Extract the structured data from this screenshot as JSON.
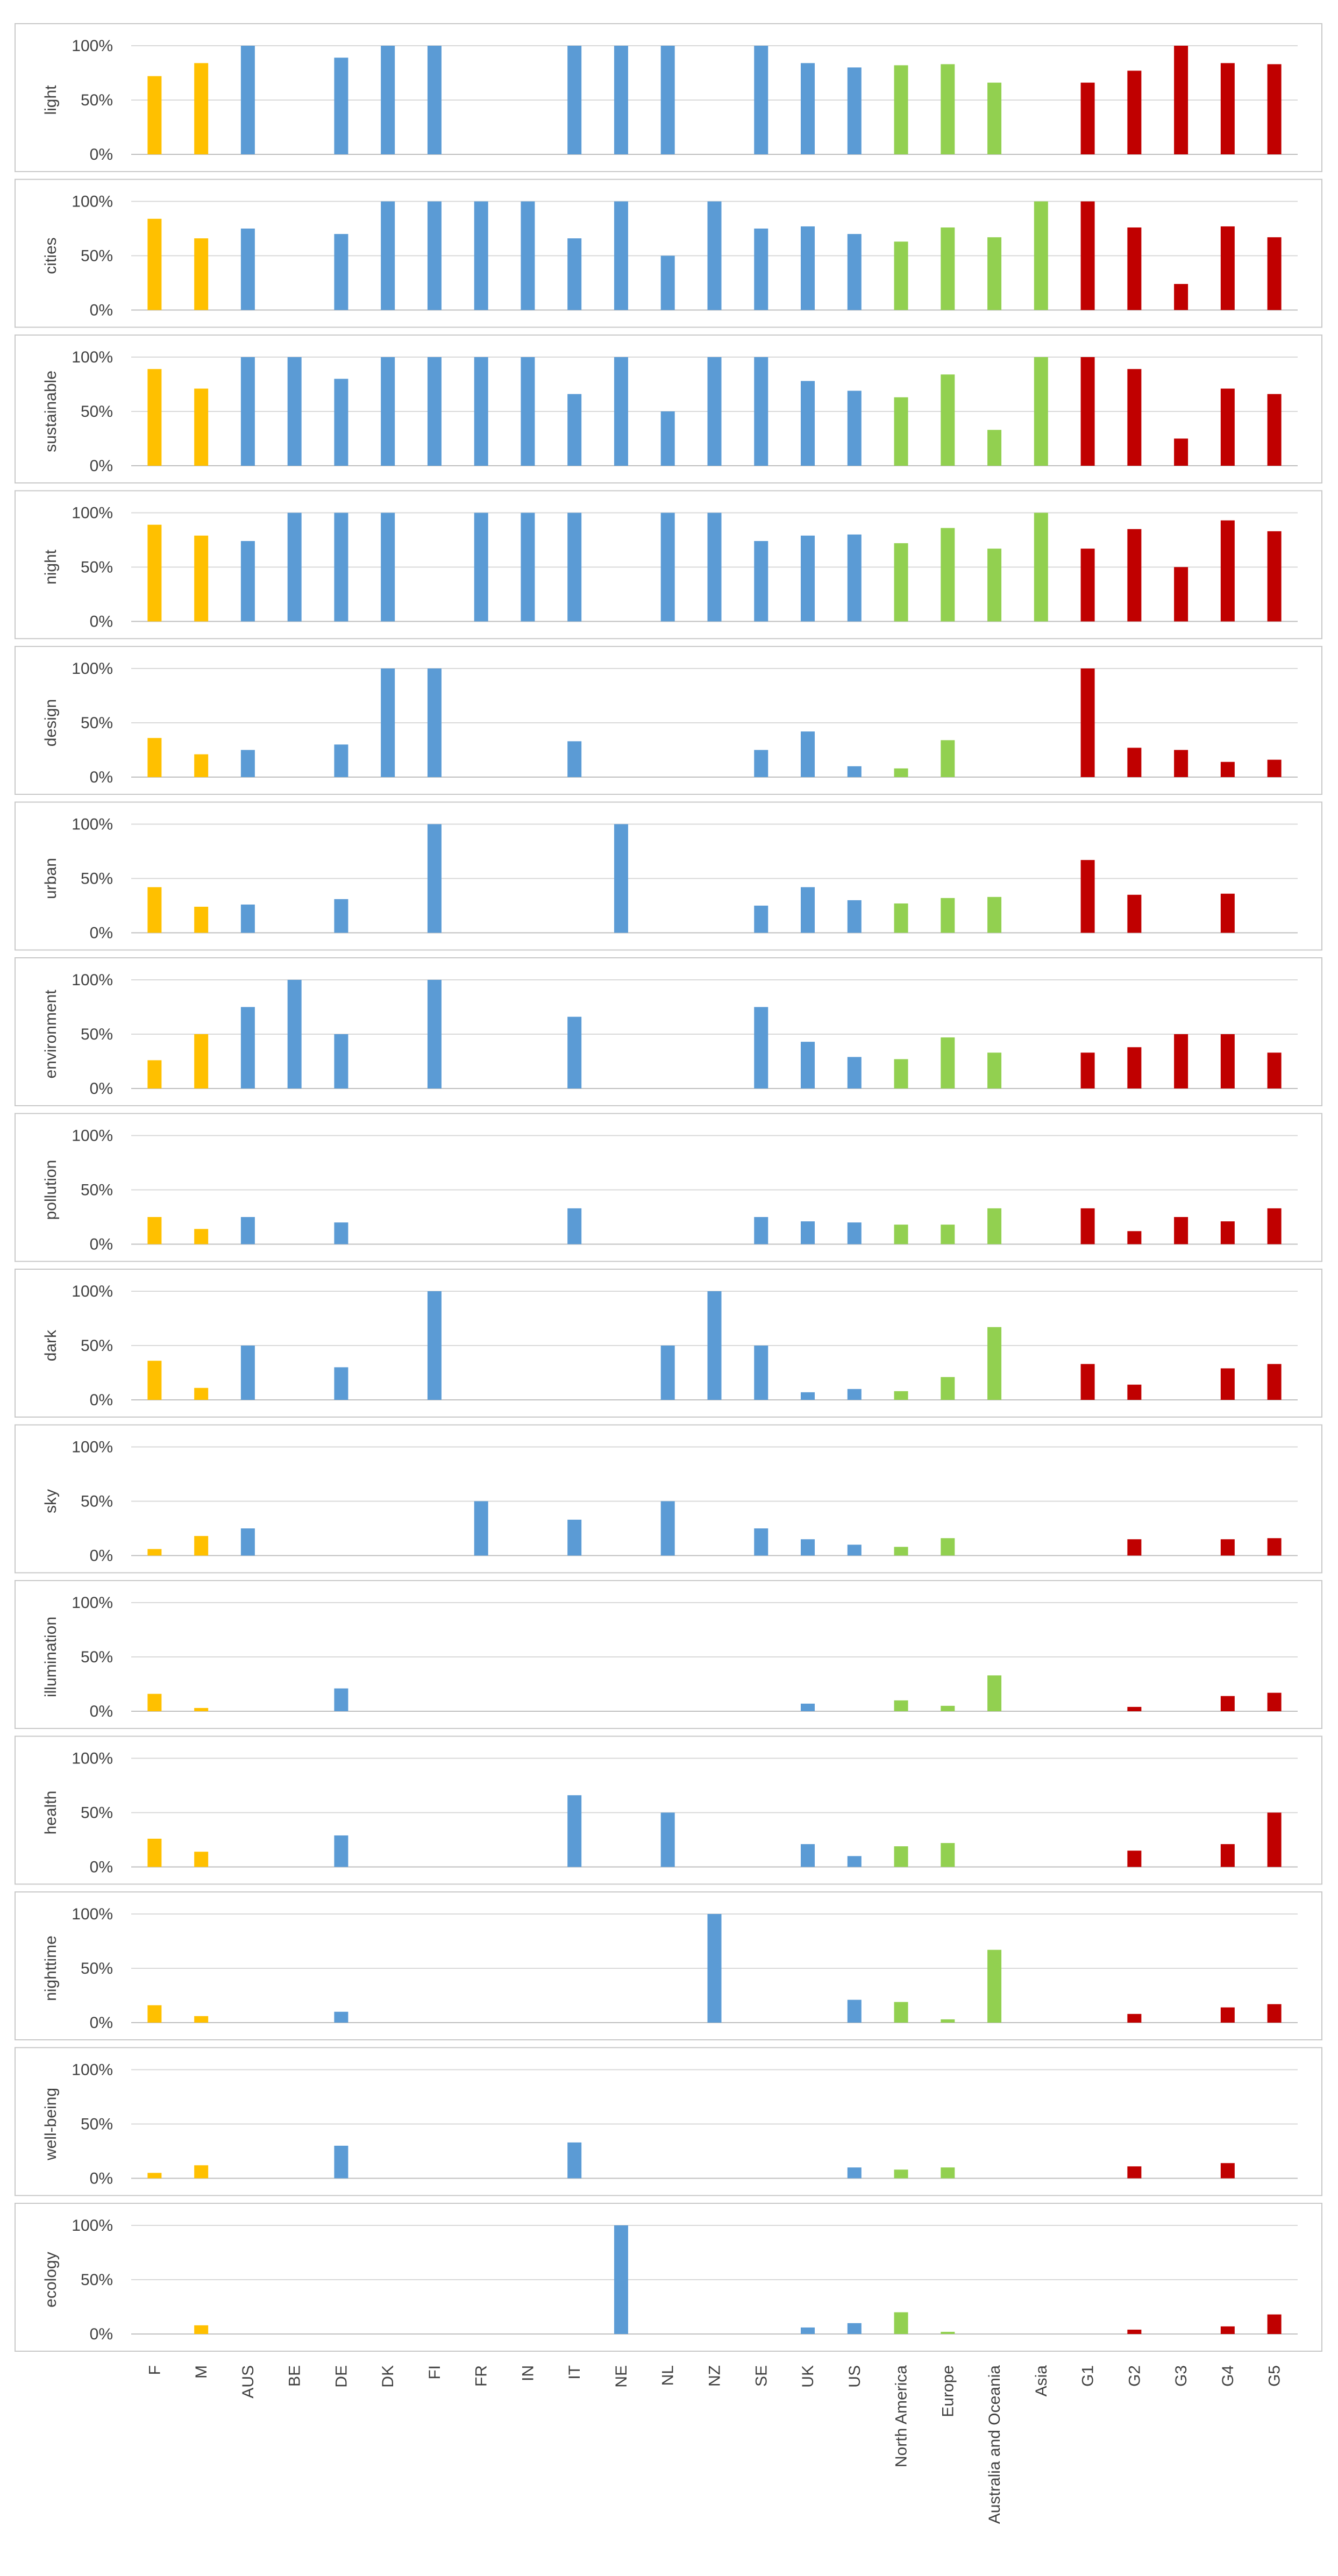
{
  "chart_data": {
    "type": "bar",
    "categories": [
      "F",
      "M",
      "AUS",
      "BE",
      "DE",
      "DK",
      "FI",
      "FR",
      "IN",
      "IT",
      "NE",
      "NL",
      "NZ",
      "SE",
      "UK",
      "US",
      "North America",
      "Europe",
      "Australia and Oceania",
      "Asia",
      "G1",
      "G2",
      "G3",
      "G4",
      "G5"
    ],
    "category_groups": [
      "gender",
      "gender",
      "country",
      "country",
      "country",
      "country",
      "country",
      "country",
      "country",
      "country",
      "country",
      "country",
      "country",
      "country",
      "country",
      "country",
      "continent",
      "continent",
      "continent",
      "continent",
      "group",
      "group",
      "group",
      "group",
      "group"
    ],
    "group_colors": {
      "gender": "#ffc000",
      "country": "#5b9bd5",
      "continent": "#92d050",
      "group": "#c00000"
    },
    "ylim": [
      0,
      100
    ],
    "yticks": [
      "0%",
      "50%",
      "100%"
    ],
    "grid": true,
    "series": [
      {
        "name": "light",
        "values": [
          72,
          84,
          100,
          0,
          89,
          100,
          100,
          0,
          0,
          100,
          100,
          100,
          0,
          100,
          84,
          80,
          82,
          83,
          66,
          0,
          66,
          77,
          100,
          84,
          83
        ]
      },
      {
        "name": "cities",
        "values": [
          84,
          66,
          75,
          0,
          70,
          100,
          100,
          100,
          100,
          66,
          100,
          50,
          100,
          75,
          77,
          70,
          63,
          76,
          67,
          100,
          100,
          76,
          24,
          77,
          67
        ]
      },
      {
        "name": "sustainable",
        "values": [
          89,
          71,
          100,
          100,
          80,
          100,
          100,
          100,
          100,
          66,
          100,
          50,
          100,
          100,
          78,
          69,
          63,
          84,
          33,
          100,
          100,
          89,
          25,
          71,
          66
        ]
      },
      {
        "name": "night",
        "values": [
          89,
          79,
          74,
          100,
          100,
          100,
          0,
          100,
          100,
          100,
          0,
          100,
          100,
          74,
          79,
          80,
          72,
          86,
          67,
          100,
          67,
          85,
          50,
          93,
          83
        ]
      },
      {
        "name": "design",
        "values": [
          36,
          21,
          25,
          0,
          30,
          100,
          100,
          0,
          0,
          33,
          0,
          0,
          0,
          25,
          42,
          10,
          8,
          34,
          0,
          0,
          100,
          27,
          25,
          14,
          16
        ]
      },
      {
        "name": "urban",
        "values": [
          42,
          24,
          26,
          0,
          31,
          0,
          100,
          0,
          0,
          0,
          100,
          0,
          0,
          25,
          42,
          30,
          27,
          32,
          33,
          0,
          67,
          35,
          0,
          36,
          0
        ]
      },
      {
        "name": "environment",
        "values": [
          26,
          50,
          75,
          100,
          50,
          0,
          100,
          0,
          0,
          66,
          0,
          0,
          0,
          75,
          43,
          29,
          27,
          47,
          33,
          0,
          33,
          38,
          50,
          50,
          33
        ]
      },
      {
        "name": "pollution",
        "values": [
          25,
          14,
          25,
          0,
          20,
          0,
          0,
          0,
          0,
          33,
          0,
          0,
          0,
          25,
          21,
          20,
          18,
          18,
          33,
          0,
          33,
          12,
          25,
          21,
          33
        ]
      },
      {
        "name": "dark",
        "values": [
          36,
          11,
          50,
          0,
          30,
          0,
          100,
          0,
          0,
          0,
          0,
          50,
          100,
          50,
          7,
          10,
          8,
          21,
          67,
          0,
          33,
          14,
          0,
          29,
          33
        ]
      },
      {
        "name": "sky",
        "values": [
          6,
          18,
          25,
          0,
          0,
          0,
          0,
          50,
          0,
          33,
          0,
          50,
          0,
          25,
          15,
          10,
          8,
          16,
          0,
          0,
          0,
          15,
          0,
          15,
          16
        ]
      },
      {
        "name": "illumination",
        "values": [
          16,
          3,
          0,
          0,
          21,
          0,
          0,
          0,
          0,
          0,
          0,
          0,
          0,
          0,
          7,
          0,
          10,
          5,
          33,
          0,
          0,
          4,
          0,
          14,
          17
        ]
      },
      {
        "name": "health",
        "values": [
          26,
          14,
          0,
          0,
          29,
          0,
          0,
          0,
          0,
          66,
          0,
          50,
          0,
          0,
          21,
          10,
          19,
          22,
          0,
          0,
          0,
          15,
          0,
          21,
          50
        ]
      },
      {
        "name": "nighttime",
        "values": [
          16,
          6,
          0,
          0,
          10,
          0,
          0,
          0,
          0,
          0,
          0,
          0,
          100,
          0,
          0,
          21,
          19,
          3,
          67,
          0,
          0,
          8,
          0,
          14,
          17
        ]
      },
      {
        "name": "well-being",
        "values": [
          5,
          12,
          0,
          0,
          30,
          0,
          0,
          0,
          0,
          33,
          0,
          0,
          0,
          0,
          0,
          10,
          8,
          10,
          0,
          0,
          0,
          11,
          0,
          14,
          0
        ]
      },
      {
        "name": "ecology",
        "values": [
          0,
          8,
          0,
          0,
          0,
          0,
          0,
          0,
          0,
          0,
          100,
          0,
          0,
          0,
          6,
          10,
          20,
          2,
          0,
          0,
          0,
          4,
          0,
          7,
          18
        ]
      }
    ],
    "title": "",
    "xlabel": "",
    "ylabel": ""
  }
}
